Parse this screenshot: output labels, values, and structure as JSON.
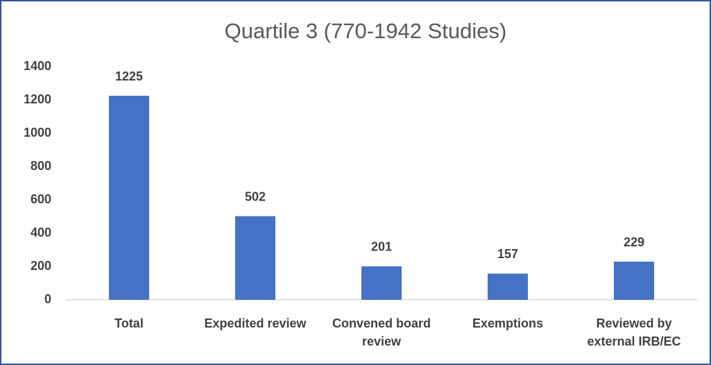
{
  "chart_data": {
    "type": "bar",
    "title": "Quartile 3 (770-1942 Studies)",
    "categories": [
      "Total",
      "Expedited review",
      "Convened board review",
      "Exemptions",
      "Reviewed by external IRB/EC"
    ],
    "values": [
      1225,
      502,
      201,
      157,
      229
    ],
    "color": "#4472c4",
    "ylim": [
      0,
      1400
    ],
    "yticks": [
      0,
      200,
      400,
      600,
      800,
      1000,
      1200,
      1400
    ],
    "grid": false
  }
}
